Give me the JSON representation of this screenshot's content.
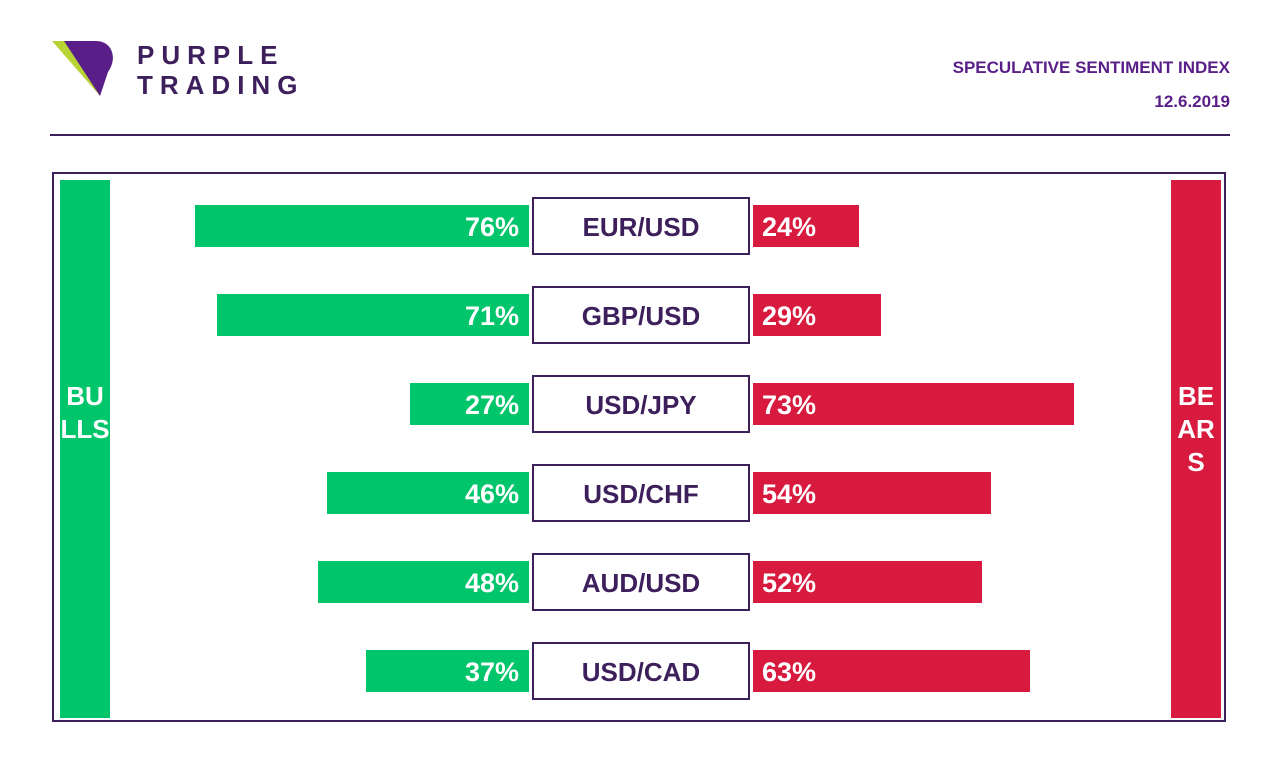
{
  "brand": {
    "line1": "PURPLE",
    "line2": "TRADING"
  },
  "header": {
    "title": "SPECULATIVE SENTIMENT INDEX",
    "date": "12.6.2019"
  },
  "colors": {
    "bulls": "#00c56a",
    "bears": "#d71a3e",
    "brand_purple": "#3d1f5c",
    "header_purple": "#5a1e88"
  },
  "sides": {
    "bulls_label": "BULLS",
    "bears_label": "BEARS"
  },
  "chart_data": {
    "type": "bar",
    "orientation": "diverging-horizontal",
    "categories": [
      "EUR/USD",
      "GBP/USD",
      "USD/JPY",
      "USD/CHF",
      "AUD/USD",
      "USD/CAD"
    ],
    "series": [
      {
        "name": "BULLS",
        "values": [
          76,
          71,
          27,
          46,
          48,
          37
        ],
        "labels": [
          "76%",
          "71%",
          "27%",
          "46%",
          "48%",
          "37%"
        ]
      },
      {
        "name": "BEARS",
        "values": [
          24,
          29,
          73,
          54,
          52,
          63
        ],
        "labels": [
          "24%",
          "29%",
          "73%",
          "54%",
          "52%",
          "63%"
        ]
      }
    ],
    "title": "SPECULATIVE SENTIMENT INDEX",
    "unit": "%",
    "ylim": [
      0,
      100
    ]
  }
}
